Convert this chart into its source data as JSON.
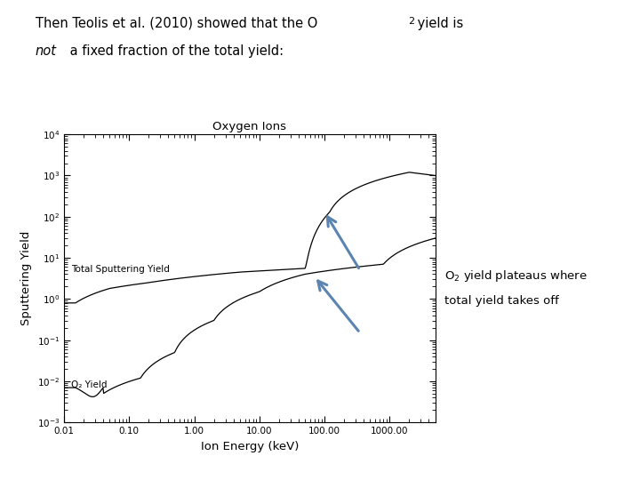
{
  "plot_title": "Oxygen Ions",
  "xlabel": "Ion Energy (keV)",
  "ylabel": "Sputtering Yield",
  "background_color": "#ffffff",
  "line_color": "#000000",
  "arrow_color": "#5b84b1",
  "label_total": "Total Sputtering Yield",
  "label_o2": "O₂ Yield",
  "annotation_line1": "O₂ yield plateaus where",
  "annotation_line2": "total yield takes off",
  "top_text_line1a": "Then Teolis et al. (2010) showed that the O",
  "top_text_line1b": " yield is",
  "top_text_line2a": "not",
  "top_text_line2b": " a fixed fraction of the total yield:"
}
